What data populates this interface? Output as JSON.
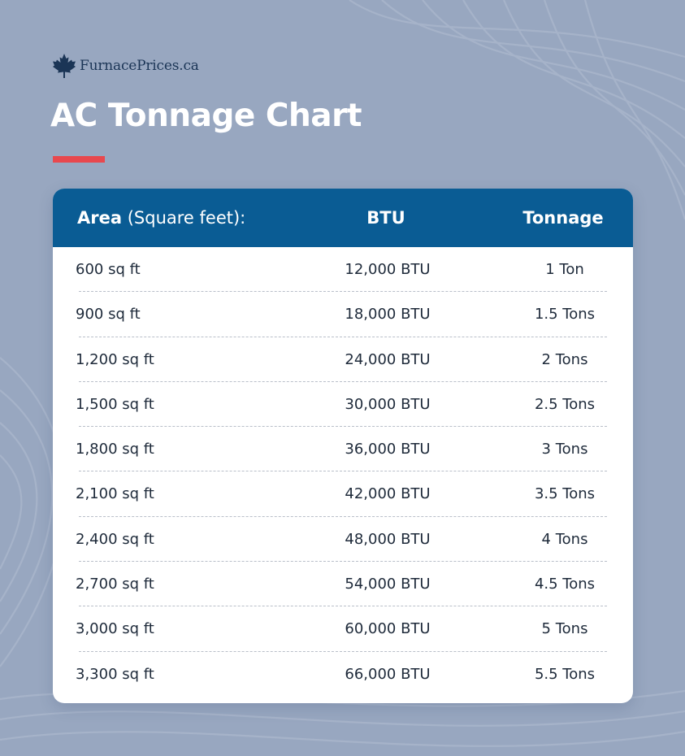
{
  "brand": {
    "name": "FurnacePrices.ca",
    "icon": "maple-leaf-icon",
    "color": "#1b3556"
  },
  "title": "AC Tonnage Chart",
  "colors": {
    "background": "#98a7c0",
    "header": "#0a5c94",
    "accent": "#e8484e"
  },
  "table": {
    "headers": {
      "area_bold": "Area",
      "area_unit": "(Square feet):",
      "btu": "BTU",
      "tonnage": "Tonnage"
    },
    "rows": [
      {
        "area": "600 sq ft",
        "btu": "12,000 BTU",
        "tonnage": "1 Ton"
      },
      {
        "area": "900 sq ft",
        "btu": "18,000 BTU",
        "tonnage": "1.5 Tons"
      },
      {
        "area": "1,200 sq ft",
        "btu": "24,000 BTU",
        "tonnage": "2 Tons"
      },
      {
        "area": "1,500 sq ft",
        "btu": "30,000 BTU",
        "tonnage": "2.5 Tons"
      },
      {
        "area": "1,800 sq ft",
        "btu": "36,000 BTU",
        "tonnage": "3 Tons"
      },
      {
        "area": "2,100 sq ft",
        "btu": "42,000 BTU",
        "tonnage": "3.5 Tons"
      },
      {
        "area": "2,400 sq ft",
        "btu": "48,000 BTU",
        "tonnage": "4 Tons"
      },
      {
        "area": "2,700 sq ft",
        "btu": "54,000 BTU",
        "tonnage": "4.5 Tons"
      },
      {
        "area": "3,000 sq ft",
        "btu": "60,000 BTU",
        "tonnage": "5 Tons"
      },
      {
        "area": "3,300 sq ft",
        "btu": "66,000 BTU",
        "tonnage": "5.5 Tons"
      }
    ]
  }
}
